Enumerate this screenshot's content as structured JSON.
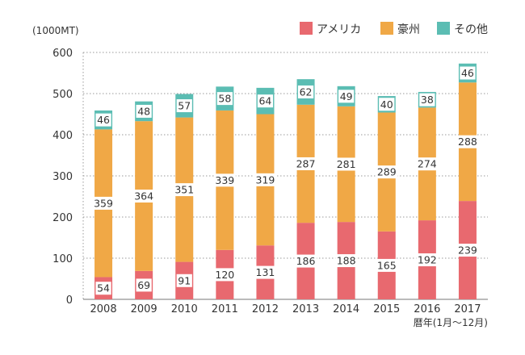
{
  "chart_data": {
    "type": "bar",
    "stacked": true,
    "y_unit_label": "(1000MT)",
    "x_axis_note": "暦年(1月〜12月)",
    "categories": [
      "2008",
      "2009",
      "2010",
      "2011",
      "2012",
      "2013",
      "2014",
      "2015",
      "2016",
      "2017"
    ],
    "series": [
      {
        "name": "アメリカ",
        "color": "#e8696f",
        "values": [
          54,
          69,
          91,
          120,
          131,
          186,
          188,
          165,
          192,
          239
        ]
      },
      {
        "name": "豪州",
        "color": "#f0a846",
        "values": [
          359,
          364,
          351,
          339,
          319,
          287,
          281,
          289,
          274,
          288
        ]
      },
      {
        "name": "その他",
        "color": "#5bbdb3",
        "values": [
          46,
          48,
          57,
          58,
          64,
          62,
          49,
          40,
          38,
          46
        ]
      }
    ],
    "ylim": [
      0,
      600
    ],
    "yticks": [
      0,
      100,
      200,
      300,
      400,
      500,
      600
    ],
    "grid": "horizontal-dotted",
    "legend_position": "top-right"
  }
}
